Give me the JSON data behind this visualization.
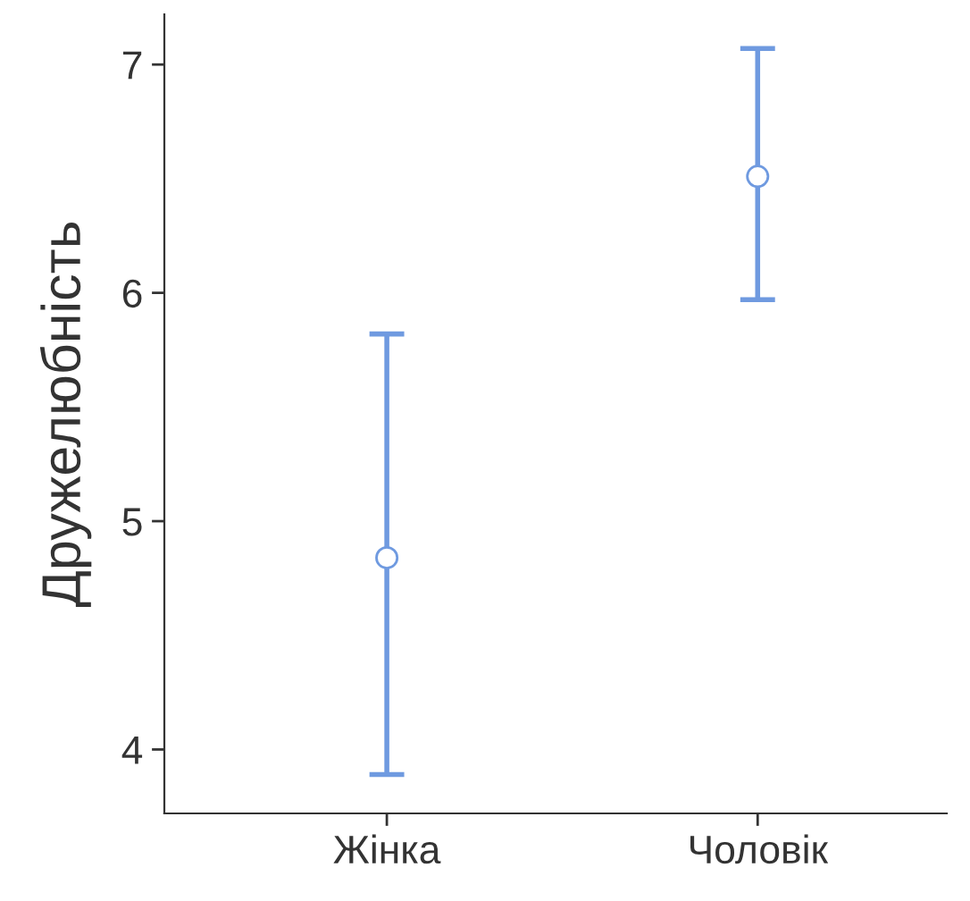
{
  "chart_data": {
    "type": "scatter",
    "ylabel": "Дружелюбність",
    "categories": [
      "Жінка",
      "Чоловік"
    ],
    "series": [
      {
        "color": "#6f9ae0",
        "values": [
          4.84,
          6.51
        ],
        "errors": [
          [
            3.89,
            5.82
          ],
          [
            5.97,
            7.07
          ]
        ]
      }
    ],
    "ylim": [
      3.72,
      7.22
    ],
    "yticks": [
      4,
      5,
      6,
      7
    ],
    "marker": "circle",
    "grid": false,
    "legend": false
  }
}
